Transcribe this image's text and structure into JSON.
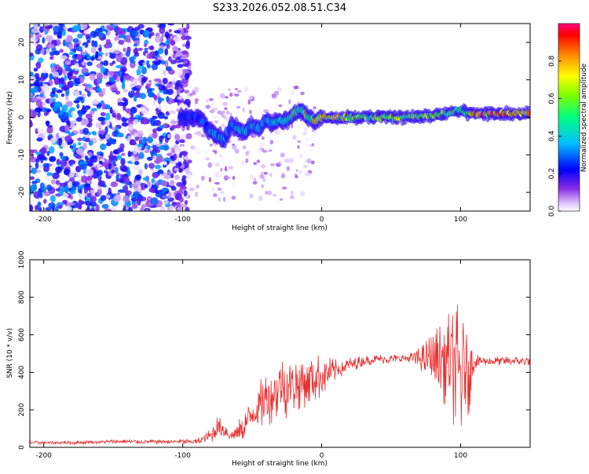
{
  "title": "S233.2026.052.08.51.C34",
  "colors": {
    "snr_line": "#e83030",
    "spectrogram_low": "#7a1fd6",
    "spectrogram_high": "#e0002a"
  },
  "chart_data": [
    {
      "type": "heatmap",
      "xlabel": "Height of straight line (km)",
      "ylabel": "Frequency (Hz)",
      "xlim": [
        -210,
        150
      ],
      "ylim": [
        -25,
        25
      ],
      "xticks": [
        -200,
        -100,
        0,
        100
      ],
      "yticks": [
        -20,
        -10,
        0,
        10,
        20
      ],
      "grid": false,
      "colorbar": {
        "label": "Normalized spectral amplitude",
        "range": [
          0,
          1
        ],
        "ticks": [
          "0.0",
          "0.2",
          "0.4",
          "0.6",
          "0.8"
        ],
        "tick_values": [
          0,
          0.2,
          0.4,
          0.6,
          0.8
        ]
      },
      "ridge": {
        "x": [
          -100,
          -90,
          -85,
          -80,
          -75,
          -70,
          -65,
          -60,
          -55,
          -50,
          -45,
          -40,
          -35,
          -30,
          -25,
          -20,
          -15,
          -10,
          -5,
          0,
          20,
          40,
          60,
          80,
          90,
          100,
          105,
          110,
          130,
          150
        ],
        "freq": [
          0,
          0,
          -1,
          -4,
          -5,
          -6,
          -2,
          -3,
          -4,
          -2,
          -3,
          -1,
          -1.5,
          -1,
          -1,
          1,
          2,
          0,
          -1,
          0,
          0,
          0,
          0,
          0.5,
          1,
          2,
          1,
          1,
          1,
          1
        ],
        "amplitude": [
          0.3,
          0.3,
          0.35,
          0.4,
          0.45,
          0.45,
          0.45,
          0.45,
          0.45,
          0.5,
          0.5,
          0.5,
          0.55,
          0.55,
          0.6,
          0.6,
          0.65,
          0.7,
          0.8,
          0.9,
          0.75,
          0.75,
          0.75,
          0.75,
          0.7,
          0.6,
          0.6,
          1.0,
          1.0,
          1.0
        ]
      },
      "noise_region": {
        "x": [
          -210,
          -95
        ],
        "amplitude_max": 0.35
      }
    },
    {
      "type": "line",
      "xlabel": "Height of straight line (km)",
      "ylabel": "SNR (10 * v/v)",
      "xlim": [
        -210,
        150
      ],
      "ylim": [
        0,
        1000
      ],
      "xticks": [
        -200,
        -100,
        0,
        100
      ],
      "yticks": [
        0,
        200,
        400,
        600,
        800,
        1000
      ],
      "grid": false,
      "series": [
        {
          "x": [
            -210,
            -180,
            -150,
            -120,
            -90,
            -80,
            -75,
            -70,
            -65,
            -60,
            -55,
            -50,
            -45,
            -40,
            -35,
            -30,
            -25,
            -20,
            -10,
            0,
            10,
            20,
            30,
            40,
            50,
            60,
            70,
            80,
            90,
            95,
            100,
            105,
            110,
            120,
            130,
            140,
            150
          ],
          "mean": [
            25,
            25,
            30,
            30,
            30,
            60,
            110,
            90,
            60,
            80,
            120,
            180,
            220,
            260,
            290,
            320,
            320,
            340,
            360,
            380,
            410,
            440,
            460,
            470,
            470,
            475,
            475,
            470,
            460,
            430,
            380,
            420,
            460,
            460,
            460,
            460,
            460
          ],
          "spread": [
            10,
            10,
            12,
            12,
            15,
            40,
            60,
            50,
            40,
            60,
            90,
            110,
            130,
            150,
            160,
            170,
            170,
            160,
            140,
            120,
            60,
            40,
            30,
            25,
            25,
            25,
            60,
            150,
            250,
            320,
            400,
            300,
            40,
            25,
            25,
            25,
            25
          ]
        }
      ]
    }
  ]
}
